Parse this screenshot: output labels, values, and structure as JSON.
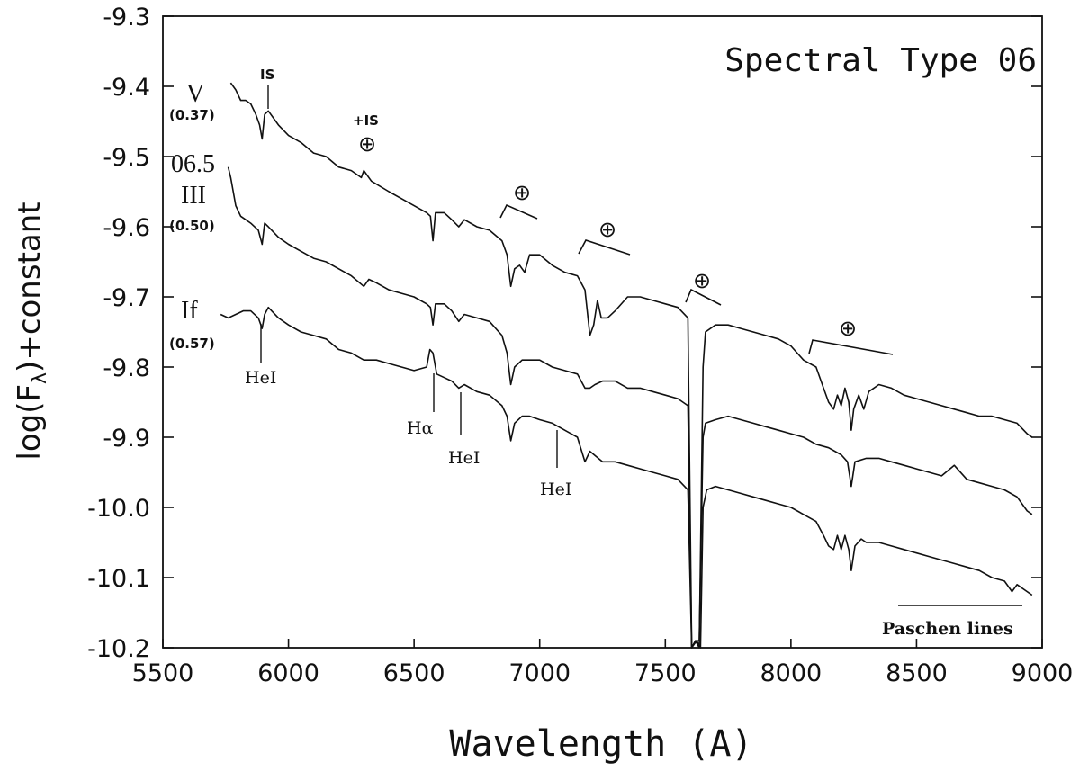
{
  "chart_data": {
    "type": "line",
    "title": "Spectral Type 06",
    "xlabel": "Wavelength (A)",
    "ylabel": "log(F_λ)+constant",
    "ylabel_main": "log(F",
    "ylabel_sub": "λ",
    "ylabel_tail": ")+constant",
    "xlim": [
      5500,
      9000
    ],
    "ylim": [
      -10.2,
      -9.3
    ],
    "x_ticks": [
      5500,
      6000,
      6500,
      7000,
      7500,
      8000,
      8500,
      9000
    ],
    "x_tick_labels": [
      "5500",
      "6000",
      "6500",
      "7000",
      "7500",
      "8000",
      "8500",
      "9000"
    ],
    "y_ticks": [
      -9.3,
      -9.4,
      -9.5,
      -9.6,
      -9.7,
      -9.8,
      -9.9,
      -10.0,
      -10.1,
      -10.2
    ],
    "y_tick_labels": [
      "-9.3",
      "-9.4",
      "-9.5",
      "-9.6",
      "-9.7",
      "-9.8",
      "-9.9",
      "-10.0",
      "-10.1",
      "-10.2"
    ],
    "grid": false,
    "series": [
      {
        "label": "V",
        "value_label": "(0.37)",
        "points": [
          [
            5770,
            -9.395
          ],
          [
            5790,
            -9.405
          ],
          [
            5810,
            -9.42
          ],
          [
            5830,
            -9.42
          ],
          [
            5850,
            -9.425
          ],
          [
            5870,
            -9.44
          ],
          [
            5885,
            -9.455
          ],
          [
            5895,
            -9.475
          ],
          [
            5905,
            -9.44
          ],
          [
            5920,
            -9.435
          ],
          [
            5960,
            -9.455
          ],
          [
            6000,
            -9.47
          ],
          [
            6050,
            -9.48
          ],
          [
            6100,
            -9.495
          ],
          [
            6150,
            -9.5
          ],
          [
            6200,
            -9.515
          ],
          [
            6250,
            -9.52
          ],
          [
            6290,
            -9.53
          ],
          [
            6300,
            -9.52
          ],
          [
            6330,
            -9.535
          ],
          [
            6400,
            -9.55
          ],
          [
            6450,
            -9.56
          ],
          [
            6500,
            -9.57
          ],
          [
            6550,
            -9.58
          ],
          [
            6565,
            -9.585
          ],
          [
            6575,
            -9.62
          ],
          [
            6585,
            -9.58
          ],
          [
            6620,
            -9.58
          ],
          [
            6650,
            -9.59
          ],
          [
            6678,
            -9.6
          ],
          [
            6700,
            -9.59
          ],
          [
            6750,
            -9.6
          ],
          [
            6800,
            -9.605
          ],
          [
            6850,
            -9.62
          ],
          [
            6870,
            -9.64
          ],
          [
            6885,
            -9.685
          ],
          [
            6900,
            -9.66
          ],
          [
            6920,
            -9.655
          ],
          [
            6940,
            -9.665
          ],
          [
            6960,
            -9.64
          ],
          [
            7000,
            -9.64
          ],
          [
            7050,
            -9.655
          ],
          [
            7100,
            -9.665
          ],
          [
            7150,
            -9.67
          ],
          [
            7180,
            -9.69
          ],
          [
            7200,
            -9.755
          ],
          [
            7215,
            -9.74
          ],
          [
            7230,
            -9.705
          ],
          [
            7245,
            -9.73
          ],
          [
            7270,
            -9.73
          ],
          [
            7300,
            -9.72
          ],
          [
            7350,
            -9.7
          ],
          [
            7400,
            -9.7
          ],
          [
            7450,
            -9.705
          ],
          [
            7500,
            -9.71
          ],
          [
            7550,
            -9.715
          ],
          [
            7590,
            -9.73
          ],
          [
            7605,
            -10.2
          ],
          [
            7620,
            -10.19
          ],
          [
            7635,
            -10.2
          ],
          [
            7650,
            -9.8
          ],
          [
            7660,
            -9.75
          ],
          [
            7700,
            -9.74
          ],
          [
            7750,
            -9.74
          ],
          [
            7800,
            -9.745
          ],
          [
            7850,
            -9.75
          ],
          [
            7900,
            -9.755
          ],
          [
            7950,
            -9.76
          ],
          [
            8000,
            -9.77
          ],
          [
            8050,
            -9.79
          ],
          [
            8100,
            -9.8
          ],
          [
            8130,
            -9.83
          ],
          [
            8150,
            -9.85
          ],
          [
            8170,
            -9.86
          ],
          [
            8185,
            -9.84
          ],
          [
            8200,
            -9.855
          ],
          [
            8215,
            -9.83
          ],
          [
            8230,
            -9.85
          ],
          [
            8240,
            -9.89
          ],
          [
            8250,
            -9.86
          ],
          [
            8270,
            -9.84
          ],
          [
            8290,
            -9.86
          ],
          [
            8310,
            -9.835
          ],
          [
            8350,
            -9.825
          ],
          [
            8400,
            -9.83
          ],
          [
            8450,
            -9.84
          ],
          [
            8500,
            -9.845
          ],
          [
            8550,
            -9.85
          ],
          [
            8600,
            -9.855
          ],
          [
            8650,
            -9.86
          ],
          [
            8700,
            -9.865
          ],
          [
            8750,
            -9.87
          ],
          [
            8800,
            -9.87
          ],
          [
            8850,
            -9.875
          ],
          [
            8900,
            -9.88
          ],
          [
            8940,
            -9.895
          ],
          [
            8960,
            -9.9
          ]
        ]
      },
      {
        "label": "06.5 III",
        "label_line1": "06.5",
        "label_line2": "III",
        "value_label": "(0.50)",
        "points": [
          [
            5760,
            -9.515
          ],
          [
            5770,
            -9.53
          ],
          [
            5790,
            -9.57
          ],
          [
            5810,
            -9.585
          ],
          [
            5830,
            -9.59
          ],
          [
            5850,
            -9.595
          ],
          [
            5880,
            -9.605
          ],
          [
            5895,
            -9.625
          ],
          [
            5905,
            -9.595
          ],
          [
            5920,
            -9.6
          ],
          [
            5960,
            -9.615
          ],
          [
            6000,
            -9.625
          ],
          [
            6050,
            -9.635
          ],
          [
            6100,
            -9.645
          ],
          [
            6150,
            -9.65
          ],
          [
            6200,
            -9.66
          ],
          [
            6250,
            -9.67
          ],
          [
            6300,
            -9.685
          ],
          [
            6320,
            -9.675
          ],
          [
            6350,
            -9.68
          ],
          [
            6400,
            -9.69
          ],
          [
            6450,
            -9.695
          ],
          [
            6500,
            -9.7
          ],
          [
            6550,
            -9.71
          ],
          [
            6565,
            -9.715
          ],
          [
            6575,
            -9.74
          ],
          [
            6585,
            -9.71
          ],
          [
            6620,
            -9.71
          ],
          [
            6650,
            -9.72
          ],
          [
            6678,
            -9.735
          ],
          [
            6700,
            -9.725
          ],
          [
            6750,
            -9.73
          ],
          [
            6800,
            -9.735
          ],
          [
            6850,
            -9.755
          ],
          [
            6870,
            -9.78
          ],
          [
            6885,
            -9.825
          ],
          [
            6900,
            -9.8
          ],
          [
            6930,
            -9.79
          ],
          [
            6960,
            -9.79
          ],
          [
            7000,
            -9.79
          ],
          [
            7050,
            -9.8
          ],
          [
            7100,
            -9.805
          ],
          [
            7150,
            -9.81
          ],
          [
            7180,
            -9.83
          ],
          [
            7200,
            -9.83
          ],
          [
            7220,
            -9.825
          ],
          [
            7250,
            -9.82
          ],
          [
            7300,
            -9.82
          ],
          [
            7350,
            -9.83
          ],
          [
            7400,
            -9.83
          ],
          [
            7450,
            -9.835
          ],
          [
            7500,
            -9.84
          ],
          [
            7550,
            -9.845
          ],
          [
            7590,
            -9.855
          ],
          [
            7605,
            -10.2
          ],
          [
            7620,
            -10.19
          ],
          [
            7635,
            -10.19
          ],
          [
            7650,
            -9.9
          ],
          [
            7660,
            -9.88
          ],
          [
            7700,
            -9.875
          ],
          [
            7750,
            -9.87
          ],
          [
            7800,
            -9.875
          ],
          [
            7850,
            -9.88
          ],
          [
            7900,
            -9.885
          ],
          [
            7950,
            -9.89
          ],
          [
            8000,
            -9.895
          ],
          [
            8050,
            -9.9
          ],
          [
            8100,
            -9.91
          ],
          [
            8150,
            -9.915
          ],
          [
            8200,
            -9.925
          ],
          [
            8225,
            -9.935
          ],
          [
            8240,
            -9.97
          ],
          [
            8255,
            -9.935
          ],
          [
            8300,
            -9.93
          ],
          [
            8350,
            -9.93
          ],
          [
            8400,
            -9.935
          ],
          [
            8450,
            -9.94
          ],
          [
            8500,
            -9.945
          ],
          [
            8550,
            -9.95
          ],
          [
            8600,
            -9.955
          ],
          [
            8650,
            -9.94
          ],
          [
            8700,
            -9.96
          ],
          [
            8750,
            -9.965
          ],
          [
            8800,
            -9.97
          ],
          [
            8850,
            -9.975
          ],
          [
            8900,
            -9.985
          ],
          [
            8940,
            -10.005
          ],
          [
            8960,
            -10.01
          ]
        ]
      },
      {
        "label": "If",
        "value_label": "(0.57)",
        "points": [
          [
            5730,
            -9.725
          ],
          [
            5760,
            -9.73
          ],
          [
            5790,
            -9.725
          ],
          [
            5820,
            -9.72
          ],
          [
            5850,
            -9.72
          ],
          [
            5880,
            -9.73
          ],
          [
            5895,
            -9.745
          ],
          [
            5905,
            -9.725
          ],
          [
            5920,
            -9.715
          ],
          [
            5960,
            -9.73
          ],
          [
            6000,
            -9.74
          ],
          [
            6050,
            -9.75
          ],
          [
            6100,
            -9.755
          ],
          [
            6150,
            -9.76
          ],
          [
            6200,
            -9.775
          ],
          [
            6250,
            -9.78
          ],
          [
            6300,
            -9.79
          ],
          [
            6350,
            -9.79
          ],
          [
            6400,
            -9.795
          ],
          [
            6450,
            -9.8
          ],
          [
            6500,
            -9.805
          ],
          [
            6550,
            -9.8
          ],
          [
            6563,
            -9.775
          ],
          [
            6575,
            -9.78
          ],
          [
            6590,
            -9.81
          ],
          [
            6620,
            -9.815
          ],
          [
            6650,
            -9.82
          ],
          [
            6678,
            -9.83
          ],
          [
            6700,
            -9.825
          ],
          [
            6750,
            -9.835
          ],
          [
            6800,
            -9.84
          ],
          [
            6850,
            -9.855
          ],
          [
            6870,
            -9.87
          ],
          [
            6885,
            -9.905
          ],
          [
            6900,
            -9.88
          ],
          [
            6930,
            -9.87
          ],
          [
            6960,
            -9.87
          ],
          [
            7000,
            -9.875
          ],
          [
            7050,
            -9.88
          ],
          [
            7100,
            -9.89
          ],
          [
            7150,
            -9.9
          ],
          [
            7180,
            -9.935
          ],
          [
            7200,
            -9.92
          ],
          [
            7250,
            -9.935
          ],
          [
            7300,
            -9.935
          ],
          [
            7350,
            -9.94
          ],
          [
            7400,
            -9.945
          ],
          [
            7450,
            -9.95
          ],
          [
            7500,
            -9.955
          ],
          [
            7550,
            -9.96
          ],
          [
            7590,
            -9.975
          ],
          [
            7605,
            -10.2
          ],
          [
            7625,
            -10.19
          ],
          [
            7640,
            -10.2
          ],
          [
            7650,
            -10.0
          ],
          [
            7665,
            -9.975
          ],
          [
            7700,
            -9.97
          ],
          [
            7750,
            -9.975
          ],
          [
            7800,
            -9.98
          ],
          [
            7850,
            -9.985
          ],
          [
            7900,
            -9.99
          ],
          [
            7950,
            -9.995
          ],
          [
            8000,
            -10.0
          ],
          [
            8050,
            -10.01
          ],
          [
            8100,
            -10.02
          ],
          [
            8130,
            -10.04
          ],
          [
            8150,
            -10.055
          ],
          [
            8170,
            -10.06
          ],
          [
            8185,
            -10.04
          ],
          [
            8200,
            -10.06
          ],
          [
            8215,
            -10.04
          ],
          [
            8230,
            -10.06
          ],
          [
            8240,
            -10.09
          ],
          [
            8255,
            -10.055
          ],
          [
            8280,
            -10.045
          ],
          [
            8300,
            -10.05
          ],
          [
            8350,
            -10.05
          ],
          [
            8400,
            -10.055
          ],
          [
            8450,
            -10.06
          ],
          [
            8500,
            -10.065
          ],
          [
            8550,
            -10.07
          ],
          [
            8600,
            -10.075
          ],
          [
            8650,
            -10.08
          ],
          [
            8700,
            -10.085
          ],
          [
            8750,
            -10.09
          ],
          [
            8800,
            -10.1
          ],
          [
            8850,
            -10.105
          ],
          [
            8880,
            -10.12
          ],
          [
            8900,
            -10.11
          ],
          [
            8940,
            -10.12
          ],
          [
            8960,
            -10.125
          ]
        ]
      }
    ],
    "annotations": {
      "is": "IS",
      "plus_is": "+IS",
      "earth": "⊕",
      "hei_1": "HeI",
      "halpha": "Hα",
      "hei_2": "HeI",
      "hei_3": "HeI",
      "paschen": "Paschen lines"
    }
  }
}
